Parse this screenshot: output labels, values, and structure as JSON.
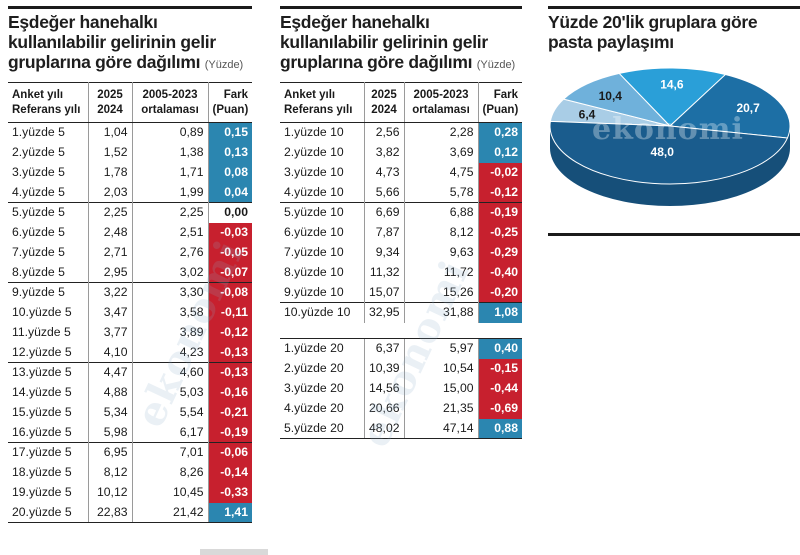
{
  "table1": {
    "title_lines": [
      "Eşdeğer hanehalkı",
      "kullanılabilir gelirinin gelir",
      "gruplarına göre dağılımı"
    ],
    "unit": "(Yüzde)",
    "header": {
      "col0": [
        "Anket yılı",
        "Referans yılı"
      ],
      "col1": [
        "2025",
        "2024"
      ],
      "col2": [
        "2005-2023",
        "ortalaması"
      ],
      "col3": [
        "Fark",
        "(Puan)"
      ]
    },
    "rows": [
      {
        "group": "1.yüzde 5",
        "v2025": "1,04",
        "avg": "0,89",
        "diff": "0,15",
        "sign": "pos"
      },
      {
        "group": "2.yüzde 5",
        "v2025": "1,52",
        "avg": "1,38",
        "diff": "0,13",
        "sign": "pos"
      },
      {
        "group": "3.yüzde 5",
        "v2025": "1,78",
        "avg": "1,71",
        "diff": "0,08",
        "sign": "pos"
      },
      {
        "group": "4.yüzde 5",
        "v2025": "2,03",
        "avg": "1,99",
        "diff": "0,04",
        "sign": "pos"
      },
      {
        "group": "5.yüzde 5",
        "v2025": "2,25",
        "avg": "2,25",
        "diff": "0,00",
        "sign": "zero"
      },
      {
        "group": "6.yüzde 5",
        "v2025": "2,48",
        "avg": "2,51",
        "diff": "-0,03",
        "sign": "neg"
      },
      {
        "group": "7.yüzde 5",
        "v2025": "2,71",
        "avg": "2,76",
        "diff": "-0,05",
        "sign": "neg"
      },
      {
        "group": "8.yüzde 5",
        "v2025": "2,95",
        "avg": "3,02",
        "diff": "-0,07",
        "sign": "neg"
      },
      {
        "group": "9.yüzde 5",
        "v2025": "3,22",
        "avg": "3,30",
        "diff": "-0,08",
        "sign": "neg"
      },
      {
        "group": "10.yüzde 5",
        "v2025": "3,47",
        "avg": "3,58",
        "diff": "-0,11",
        "sign": "neg"
      },
      {
        "group": "11.yüzde 5",
        "v2025": "3,77",
        "avg": "3,89",
        "diff": "-0,12",
        "sign": "neg"
      },
      {
        "group": "12.yüzde 5",
        "v2025": "4,10",
        "avg": "4,23",
        "diff": "-0,13",
        "sign": "neg"
      },
      {
        "group": "13.yüzde 5",
        "v2025": "4,47",
        "avg": "4,60",
        "diff": "-0,13",
        "sign": "neg"
      },
      {
        "group": "14.yüzde 5",
        "v2025": "4,88",
        "avg": "5,03",
        "diff": "-0,16",
        "sign": "neg"
      },
      {
        "group": "15.yüzde 5",
        "v2025": "5,34",
        "avg": "5,54",
        "diff": "-0,21",
        "sign": "neg"
      },
      {
        "group": "16.yüzde 5",
        "v2025": "5,98",
        "avg": "6,17",
        "diff": "-0,19",
        "sign": "neg"
      },
      {
        "group": "17.yüzde 5",
        "v2025": "6,95",
        "avg": "7,01",
        "diff": "-0,06",
        "sign": "neg"
      },
      {
        "group": "18.yüzde 5",
        "v2025": "8,12",
        "avg": "8,26",
        "diff": "-0,14",
        "sign": "neg"
      },
      {
        "group": "19.yüzde 5",
        "v2025": "10,12",
        "avg": "10,45",
        "diff": "-0,33",
        "sign": "neg"
      },
      {
        "group": "20.yüzde 5",
        "v2025": "22,83",
        "avg": "21,42",
        "diff": "1,41",
        "sign": "pos"
      }
    ]
  },
  "table2": {
    "title_lines": [
      "Eşdeğer hanehalkı",
      "kullanılabilir gelirinin gelir",
      "gruplarına göre dağılımı"
    ],
    "unit": "(Yüzde)",
    "header": {
      "col0": [
        "Anket yılı",
        "Referans yılı"
      ],
      "col1": [
        "2025",
        "2024"
      ],
      "col2": [
        "2005-2023",
        "ortalaması"
      ],
      "col3": [
        "Fark",
        "(Puan)"
      ]
    },
    "rows_decile": [
      {
        "group": "1.yüzde 10",
        "v2025": "2,56",
        "avg": "2,28",
        "diff": "0,28",
        "sign": "pos"
      },
      {
        "group": "2.yüzde 10",
        "v2025": "3,82",
        "avg": "3,69",
        "diff": "0,12",
        "sign": "pos"
      },
      {
        "group": "3.yüzde 10",
        "v2025": "4,73",
        "avg": "4,75",
        "diff": "-0,02",
        "sign": "neg"
      },
      {
        "group": "4.yüzde 10",
        "v2025": "5,66",
        "avg": "5,78",
        "diff": "-0,12",
        "sign": "neg"
      },
      {
        "group": "5.yüzde 10",
        "v2025": "6,69",
        "avg": "6,88",
        "diff": "-0,19",
        "sign": "neg"
      },
      {
        "group": "6.yüzde 10",
        "v2025": "7,87",
        "avg": "8,12",
        "diff": "-0,25",
        "sign": "neg"
      },
      {
        "group": "7.yüzde 10",
        "v2025": "9,34",
        "avg": "9,63",
        "diff": "-0,29",
        "sign": "neg"
      },
      {
        "group": "8.yüzde 10",
        "v2025": "11,32",
        "avg": "11,72",
        "diff": "-0,40",
        "sign": "neg"
      },
      {
        "group": "9.yüzde 10",
        "v2025": "15,07",
        "avg": "15,26",
        "diff": "-0,20",
        "sign": "neg"
      },
      {
        "group": "10.yüzde 10",
        "v2025": "32,95",
        "avg": "31,88",
        "diff": "1,08",
        "sign": "pos"
      }
    ],
    "rows_quintile": [
      {
        "group": "1.yüzde 20",
        "v2025": "6,37",
        "avg": "5,97",
        "diff": "0,40",
        "sign": "pos"
      },
      {
        "group": "2.yüzde 20",
        "v2025": "10,39",
        "avg": "10,54",
        "diff": "-0,15",
        "sign": "neg"
      },
      {
        "group": "3.yüzde 20",
        "v2025": "14,56",
        "avg": "15,00",
        "diff": "-0,44",
        "sign": "neg"
      },
      {
        "group": "4.yüzde 20",
        "v2025": "20,66",
        "avg": "21,35",
        "diff": "-0,69",
        "sign": "neg"
      },
      {
        "group": "5.yüzde 20",
        "v2025": "48,02",
        "avg": "47,14",
        "diff": "0,88",
        "sign": "pos"
      }
    ]
  },
  "pie": {
    "title_lines": [
      "Yüzde 20'lik gruplara göre",
      "pasta paylaşımı"
    ],
    "slices": [
      {
        "label": "6,4",
        "value": 6.4,
        "color": "#a9cde6"
      },
      {
        "label": "10,4",
        "value": 10.4,
        "color": "#6fb1db"
      },
      {
        "label": "14,6",
        "value": 14.6,
        "color": "#2a9fd8"
      },
      {
        "label": "20,7",
        "value": 20.7,
        "color": "#1d6fa5"
      },
      {
        "label": "48,0",
        "value": 48.0,
        "color": "#1a5c8d"
      }
    ]
  },
  "watermark": "ekonomi",
  "colors": {
    "positive": "#2b86b0",
    "negative": "#c7202e"
  }
}
